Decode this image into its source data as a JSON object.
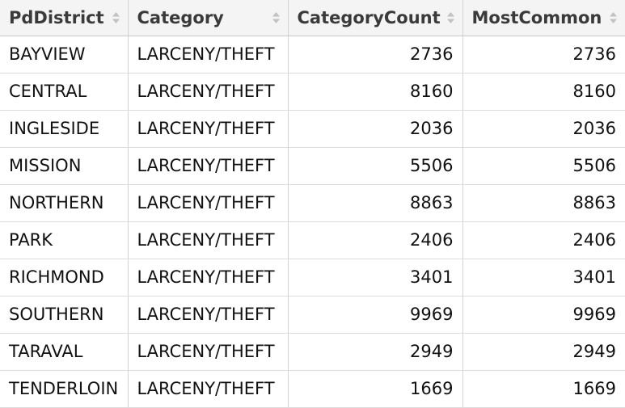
{
  "table": {
    "columns": [
      {
        "label": "PdDistrict",
        "align": "left"
      },
      {
        "label": "Category",
        "align": "left"
      },
      {
        "label": "CategoryCount",
        "align": "right"
      },
      {
        "label": "MostCommon",
        "align": "right"
      }
    ],
    "sort_icon": "sort-updown-icon",
    "rows": [
      [
        "BAYVIEW",
        "LARCENY/THEFT",
        "2736",
        "2736"
      ],
      [
        "CENTRAL",
        "LARCENY/THEFT",
        "8160",
        "8160"
      ],
      [
        "INGLESIDE",
        "LARCENY/THEFT",
        "2036",
        "2036"
      ],
      [
        "MISSION",
        "LARCENY/THEFT",
        "5506",
        "5506"
      ],
      [
        "NORTHERN",
        "LARCENY/THEFT",
        "8863",
        "8863"
      ],
      [
        "PARK",
        "LARCENY/THEFT",
        "2406",
        "2406"
      ],
      [
        "RICHMOND",
        "LARCENY/THEFT",
        "3401",
        "3401"
      ],
      [
        "SOUTHERN",
        "LARCENY/THEFT",
        "9969",
        "9969"
      ],
      [
        "TARAVAL",
        "LARCENY/THEFT",
        "2949",
        "2949"
      ],
      [
        "TENDERLOIN",
        "LARCENY/THEFT",
        "1669",
        "1669"
      ]
    ]
  },
  "colors": {
    "header_bg": "#f4f4f4",
    "border": "#d2d2d2",
    "sort_icon": "#c2c2c2"
  }
}
